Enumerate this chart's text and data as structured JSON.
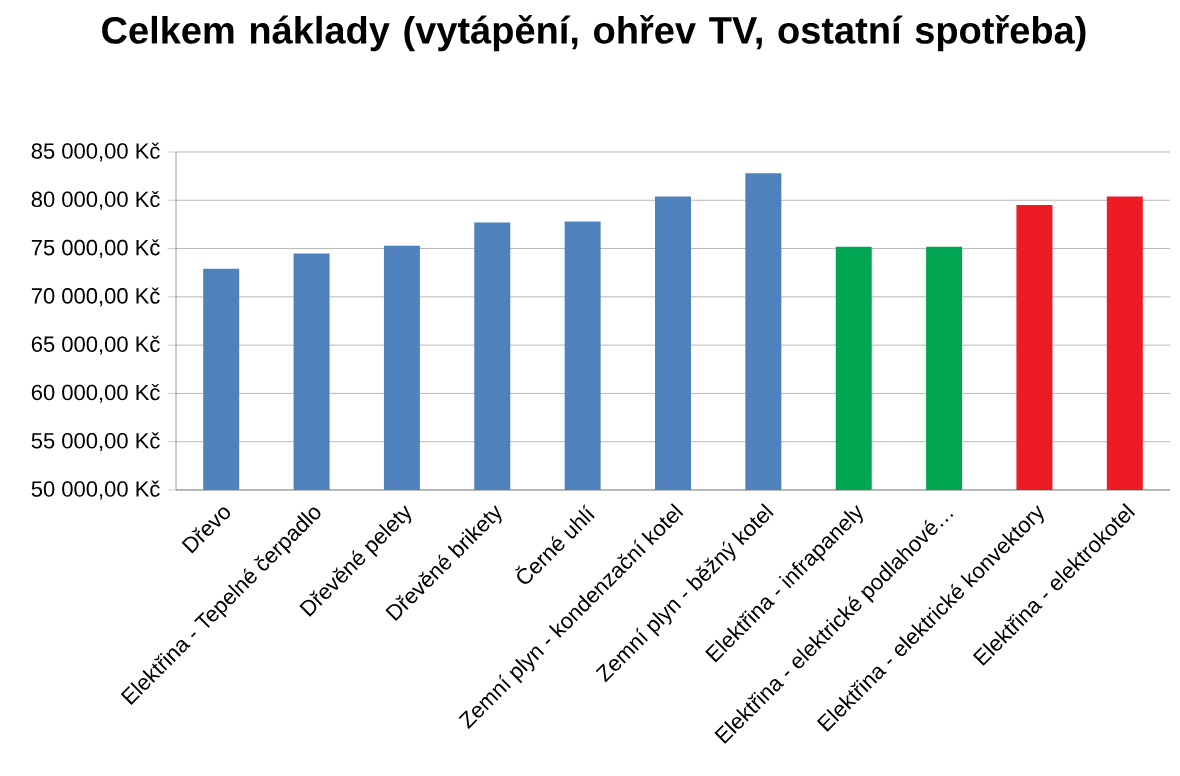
{
  "chart_data": {
    "type": "bar",
    "title": "Celkem náklady  (vytápění, ohřev TV, ostatní spotřeba)",
    "categories": [
      "Dřevo",
      "Elektřina - Tepelné čerpadlo",
      "Dřevěné pelety",
      "Dřevěné brikety",
      "Černé uhlí",
      "Zemní plyn - kondenzační kotel",
      "Zemní plyn - běžný kotel",
      "Elektřina - infrapanely",
      "Elektřina - elektrické podlahové…",
      "Elektřina - elektrické konvektory",
      "Elektřina - elektrokotel"
    ],
    "values": [
      72900,
      74500,
      75300,
      77700,
      77800,
      80400,
      82800,
      75200,
      75200,
      79500,
      80400
    ],
    "colors": [
      "#4f81bd",
      "#4f81bd",
      "#4f81bd",
      "#4f81bd",
      "#4f81bd",
      "#4f81bd",
      "#4f81bd",
      "#00a651",
      "#00a651",
      "#ed1c24",
      "#ed1c24"
    ],
    "ylim": [
      50000,
      85000
    ],
    "yticks": [
      {
        "value": 50000,
        "label": "50 000,00 Kč"
      },
      {
        "value": 55000,
        "label": "55 000,00 Kč"
      },
      {
        "value": 60000,
        "label": "60 000,00 Kč"
      },
      {
        "value": 65000,
        "label": "65 000,00 Kč"
      },
      {
        "value": 70000,
        "label": "70 000,00 Kč"
      },
      {
        "value": 75000,
        "label": "75 000,00 Kč"
      },
      {
        "value": 80000,
        "label": "80 000,00 Kč"
      },
      {
        "value": 85000,
        "label": "85 000,00 Kč"
      }
    ],
    "grid": "y"
  }
}
